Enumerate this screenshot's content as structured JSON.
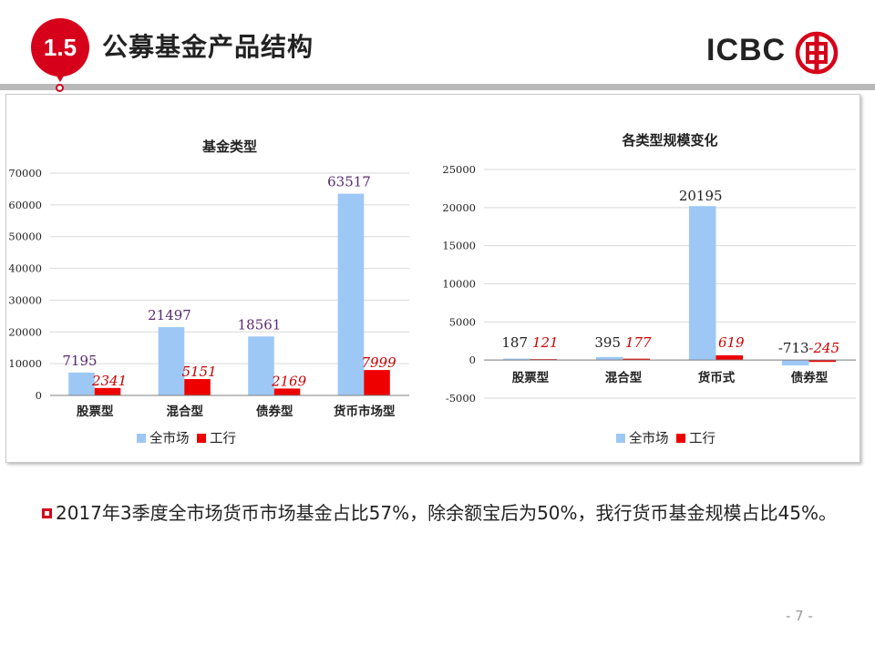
{
  "header": {
    "section_number": "1.5",
    "title": "公募基金产品结构",
    "logo_text": "ICBC",
    "logo_icon": "icbc-seal-icon",
    "accent_color": "#d7001a"
  },
  "chart_data": [
    {
      "type": "bar",
      "title": "基金类型",
      "categories": [
        "股票型",
        "混合型",
        "债券型",
        "货币市场型"
      ],
      "series": [
        {
          "name": "全市场",
          "values": [
            7195,
            21497,
            18561,
            63517
          ],
          "color": "#9dc8f5",
          "label_color": "#5b2a72",
          "label_italic": false
        },
        {
          "name": "工行",
          "values": [
            2341,
            5151,
            2169,
            7999
          ],
          "color": "#ee0000",
          "label_color": "#cc0000",
          "label_italic": true
        }
      ],
      "ylim": [
        0,
        70000
      ],
      "yticks": [
        0,
        10000,
        20000,
        30000,
        40000,
        50000,
        60000,
        70000
      ],
      "grid": true,
      "legend": "bottom"
    },
    {
      "type": "bar",
      "title": "各类型规模变化",
      "categories": [
        "股票型",
        "混合型",
        "货币式",
        "债券型"
      ],
      "series": [
        {
          "name": "全市场",
          "values": [
            187,
            395,
            20195,
            -713
          ],
          "color": "#9dc8f5",
          "label_color": "#222222",
          "label_italic": false
        },
        {
          "name": "工行",
          "values": [
            121,
            177,
            619,
            -245
          ],
          "color": "#ee0000",
          "label_color": "#cc0000",
          "label_italic": true
        }
      ],
      "ylim": [
        -5000,
        25000
      ],
      "yticks": [
        -5000,
        0,
        5000,
        10000,
        15000,
        20000,
        25000
      ],
      "grid": true,
      "legend": "bottom"
    }
  ],
  "body": {
    "bullet_text": "2017年3季度全市场货币市场基金占比57%，除余额宝后为50%，我行货币基金规模占比45%。"
  },
  "footer": {
    "page_number": "- 7 -"
  }
}
